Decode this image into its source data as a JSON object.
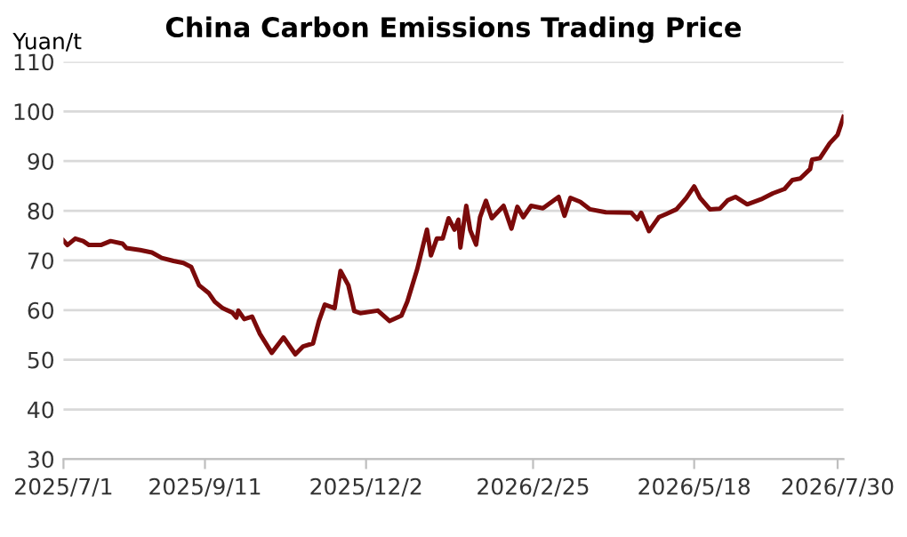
{
  "chart_data": {
    "type": "line",
    "title": "China Carbon Emissions Trading Price",
    "ylabel": "Yuan/t",
    "x": [
      "2025-07-01",
      "2025-07-03",
      "2025-07-07",
      "2025-07-11",
      "2025-07-14",
      "2025-07-20",
      "2025-07-25",
      "2025-07-31",
      "2025-08-02",
      "2025-08-09",
      "2025-08-15",
      "2025-08-20",
      "2025-08-26",
      "2025-08-31",
      "2025-09-04",
      "2025-09-08",
      "2025-09-13",
      "2025-09-16",
      "2025-09-20",
      "2025-09-25",
      "2025-09-27",
      "2025-09-28",
      "2025-10-01",
      "2025-10-05",
      "2025-10-09",
      "2025-10-15",
      "2025-10-21",
      "2025-10-27",
      "2025-10-31",
      "2025-11-05",
      "2025-11-08",
      "2025-11-11",
      "2025-11-16",
      "2025-11-19",
      "2025-11-23",
      "2025-11-26",
      "2025-11-29",
      "2025-12-08",
      "2025-12-14",
      "2025-12-20",
      "2025-12-23",
      "2025-12-28",
      "2026-01-02",
      "2026-01-04",
      "2026-01-07",
      "2026-01-10",
      "2026-01-13",
      "2026-01-16",
      "2026-01-18",
      "2026-01-19",
      "2026-01-22",
      "2026-01-24",
      "2026-01-27",
      "2026-01-29",
      "2026-02-01",
      "2026-02-04",
      "2026-02-10",
      "2026-02-14",
      "2026-02-17",
      "2026-02-20",
      "2026-02-24",
      "2026-03-02",
      "2026-03-10",
      "2026-03-13",
      "2026-03-16",
      "2026-03-21",
      "2026-03-26",
      "2026-04-03",
      "2026-04-16",
      "2026-04-19",
      "2026-04-21",
      "2026-04-25",
      "2026-04-30",
      "2026-05-04",
      "2026-05-09",
      "2026-05-14",
      "2026-05-18",
      "2026-05-21",
      "2026-05-26",
      "2026-05-31",
      "2026-06-04",
      "2026-06-08",
      "2026-06-14",
      "2026-06-21",
      "2026-06-27",
      "2026-07-03",
      "2026-07-07",
      "2026-07-11",
      "2026-07-16",
      "2026-07-17",
      "2026-07-21",
      "2026-07-26",
      "2026-07-30",
      "2026-08-02"
    ],
    "series": [
      {
        "color": "#7b0a0a",
        "values": [
          74.0,
          73.1,
          74.4,
          73.9,
          73.1,
          73.1,
          73.9,
          73.4,
          72.5,
          72.1,
          71.6,
          70.5,
          69.9,
          69.5,
          68.7,
          65.0,
          63.4,
          61.7,
          60.4,
          59.5,
          58.5,
          59.9,
          58.2,
          58.7,
          55.2,
          51.4,
          54.5,
          51.1,
          52.7,
          53.3,
          57.8,
          61.1,
          60.4,
          67.9,
          65.0,
          59.8,
          59.4,
          59.9,
          57.8,
          58.9,
          61.7,
          68.2,
          76.2,
          71.0,
          74.4,
          74.4,
          78.5,
          76.2,
          78.2,
          72.6,
          81.0,
          76.1,
          73.2,
          78.7,
          82.0,
          78.5,
          81.0,
          76.4,
          80.8,
          78.7,
          81.0,
          80.5,
          82.8,
          79.0,
          82.6,
          81.8,
          80.3,
          79.7,
          79.6,
          78.3,
          79.6,
          75.9,
          78.7,
          79.4,
          80.3,
          82.6,
          84.9,
          82.6,
          80.3,
          80.4,
          82.1,
          82.8,
          81.3,
          82.3,
          83.5,
          84.4,
          86.2,
          86.5,
          88.4,
          90.3,
          90.6,
          93.6,
          95.3,
          98.9
        ]
      }
    ],
    "xlim": [
      "2025-07-01",
      "2026-08-02"
    ],
    "xticks": [
      {
        "value": "2025-07-01",
        "label": "2025/7/1"
      },
      {
        "value": "2025-09-11",
        "label": "2025/9/11"
      },
      {
        "value": "2025-12-02",
        "label": "2025/12/2"
      },
      {
        "value": "2026-02-25",
        "label": "2026/2/25"
      },
      {
        "value": "2026-05-18",
        "label": "2026/5/18"
      },
      {
        "value": "2026-07-30",
        "label": "2026/7/30"
      }
    ],
    "ylim": [
      30,
      110
    ],
    "yticks": [
      30,
      40,
      50,
      60,
      70,
      80,
      90,
      100,
      110
    ],
    "grid": "y",
    "line_style": "solid"
  }
}
